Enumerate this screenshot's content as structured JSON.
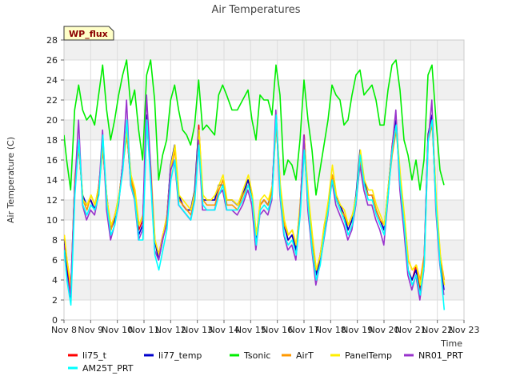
{
  "chart_data": {
    "type": "line",
    "title": "Air Temperatures",
    "xlabel": "Time",
    "ylabel": "Air Temperature (C)",
    "badge": "WP_flux",
    "ylim": [
      0,
      28
    ],
    "yticks": [
      0,
      2,
      4,
      6,
      8,
      10,
      12,
      14,
      16,
      18,
      20,
      22,
      24,
      26,
      28
    ],
    "xlim": [
      8,
      23
    ],
    "xticks": [
      {
        "v": 8,
        "label": "Nov 8"
      },
      {
        "v": 9,
        "label": "Nov 9"
      },
      {
        "v": 10,
        "label": "Nov 10"
      },
      {
        "v": 11,
        "label": "Nov 11"
      },
      {
        "v": 12,
        "label": "Nov 12"
      },
      {
        "v": 13,
        "label": "Nov 13"
      },
      {
        "v": 14,
        "label": "Nov 14"
      },
      {
        "v": 15,
        "label": "Nov 15"
      },
      {
        "v": 16,
        "label": "Nov 16"
      },
      {
        "v": 17,
        "label": "Nov 17"
      },
      {
        "v": 18,
        "label": "Nov 18"
      },
      {
        "v": 19,
        "label": "Nov 19"
      },
      {
        "v": 20,
        "label": "Nov 20"
      },
      {
        "v": 21,
        "label": "Nov 21"
      },
      {
        "v": 22,
        "label": "Nov 22"
      },
      {
        "v": 23,
        "label": "Nov 23"
      }
    ],
    "grid": true,
    "legend_position": "bottom",
    "base_x": [
      8.0,
      8.1,
      8.25,
      8.4,
      8.55,
      8.7,
      8.85,
      9.0,
      9.15,
      9.3,
      9.45,
      9.6,
      9.75,
      9.9,
      10.05,
      10.2,
      10.35,
      10.5,
      10.65,
      10.8,
      10.95,
      11.1,
      11.25,
      11.4,
      11.55,
      11.7,
      11.85,
      12.0,
      12.15,
      12.3,
      12.45,
      12.6,
      12.75,
      12.9,
      13.05,
      13.2,
      13.35,
      13.5,
      13.65,
      13.8,
      13.95,
      14.1,
      14.3,
      14.5,
      14.7,
      14.9,
      15.05,
      15.2,
      15.35,
      15.5,
      15.65,
      15.8,
      15.95,
      16.1,
      16.25,
      16.4,
      16.55,
      16.7,
      16.85,
      17.0,
      17.15,
      17.3,
      17.45,
      17.6,
      17.75,
      17.9,
      18.05,
      18.2,
      18.35,
      18.5,
      18.65,
      18.8,
      18.95,
      19.1,
      19.25,
      19.4,
      19.55,
      19.7,
      19.85,
      20.0,
      20.15,
      20.3,
      20.45,
      20.6,
      20.75,
      20.9,
      21.05,
      21.2,
      21.35,
      21.5,
      21.65,
      21.8,
      21.95,
      22.1,
      22.25
    ],
    "series": [
      {
        "name": "li75_t",
        "color": "#ff0000",
        "offset": 0.1,
        "values": [
          8.5,
          5.5,
          2.8,
          14.0,
          17.5,
          12.0,
          11.5,
          12.0,
          11.0,
          13.5,
          17.5,
          12.0,
          9.0,
          10.5,
          12.0,
          15.5,
          19.5,
          14.5,
          12.5,
          9.0,
          10.0,
          20.0,
          14.5,
          8.0,
          6.5,
          8.5,
          10.0,
          15.5,
          17.5,
          12.5,
          11.5,
          11.0,
          11.0,
          13.0,
          19.5,
          12.0,
          12.0,
          12.0,
          12.0,
          13.5,
          13.5,
          12.0,
          12.0,
          11.5,
          12.5,
          14.0,
          12.5,
          8.0,
          11.5,
          12.0,
          11.5,
          13.0,
          20.5,
          13.5,
          9.5,
          8.0,
          8.5,
          7.0,
          11.5,
          18.5,
          12.0,
          8.0,
          4.5,
          6.5,
          9.0,
          11.5,
          14.5,
          12.5,
          11.5,
          10.5,
          9.0,
          10.0,
          12.5,
          16.5,
          14.0,
          12.5,
          12.5,
          11.0,
          10.0,
          9.0,
          13.0,
          17.5,
          20.0,
          14.0,
          10.0,
          5.0,
          4.0,
          5.5,
          3.0,
          5.5,
          18.5,
          20.5,
          12.0,
          6.5,
          3.5
        ]
      },
      {
        "name": "li77_temp",
        "color": "#0000cc",
        "offset": 0.0,
        "values": [
          8.0,
          5.0,
          2.0,
          13.5,
          17.5,
          12.5,
          11.5,
          12.0,
          11.0,
          13.0,
          17.5,
          12.5,
          9.0,
          10.0,
          12.0,
          15.5,
          19.0,
          14.0,
          12.5,
          8.5,
          9.5,
          20.5,
          15.0,
          8.0,
          6.0,
          8.0,
          10.0,
          15.5,
          17.5,
          12.5,
          11.5,
          11.0,
          11.0,
          13.0,
          19.0,
          12.0,
          12.0,
          12.0,
          12.0,
          13.5,
          13.5,
          12.0,
          12.0,
          11.5,
          12.5,
          14.0,
          12.5,
          8.0,
          11.5,
          12.0,
          11.5,
          13.0,
          20.0,
          13.5,
          9.5,
          8.0,
          8.5,
          7.0,
          11.0,
          18.0,
          12.0,
          7.5,
          4.5,
          6.0,
          9.0,
          11.5,
          14.5,
          12.5,
          11.5,
          10.5,
          9.0,
          10.0,
          12.5,
          17.0,
          14.0,
          12.5,
          12.5,
          11.0,
          10.0,
          9.0,
          13.0,
          17.0,
          20.0,
          14.0,
          9.5,
          5.0,
          4.0,
          5.0,
          2.5,
          5.5,
          18.5,
          20.5,
          11.5,
          6.0,
          3.0
        ]
      },
      {
        "name": "Tsonic",
        "color": "#00ee00",
        "offset": 0.0,
        "values": [
          18.5,
          16.0,
          13.0,
          21.0,
          23.5,
          21.0,
          20.0,
          20.5,
          19.5,
          22.5,
          25.5,
          21.0,
          18.0,
          20.0,
          22.5,
          24.5,
          26.0,
          21.5,
          23.0,
          19.0,
          16.0,
          24.5,
          26.0,
          22.0,
          14.0,
          16.5,
          18.0,
          22.0,
          23.5,
          21.0,
          19.0,
          18.5,
          17.5,
          19.5,
          24.0,
          19.0,
          19.5,
          19.0,
          18.5,
          22.5,
          23.5,
          22.5,
          21.0,
          21.0,
          22.0,
          23.0,
          20.0,
          18.0,
          22.5,
          22.0,
          22.0,
          20.5,
          25.5,
          22.5,
          14.5,
          16.0,
          15.5,
          14.0,
          18.0,
          24.0,
          20.0,
          17.0,
          12.5,
          15.0,
          17.5,
          20.0,
          23.5,
          22.5,
          22.0,
          19.5,
          20.0,
          22.5,
          24.5,
          25.0,
          22.5,
          23.0,
          23.5,
          22.0,
          19.5,
          19.5,
          23.0,
          25.5,
          26.0,
          23.0,
          18.0,
          16.5,
          14.0,
          16.0,
          13.0,
          16.0,
          24.5,
          25.5,
          20.0,
          15.0,
          13.5
        ]
      },
      {
        "name": "AirT",
        "color": "#ff9900",
        "offset": 0.2,
        "values": [
          8.5,
          6.0,
          3.5,
          14.5,
          17.0,
          12.0,
          11.0,
          12.5,
          11.5,
          13.5,
          17.0,
          12.0,
          9.0,
          10.5,
          12.5,
          15.5,
          18.5,
          14.0,
          12.5,
          9.5,
          10.5,
          19.5,
          14.5,
          8.0,
          6.5,
          8.5,
          10.5,
          15.0,
          17.0,
          12.0,
          11.5,
          11.0,
          10.5,
          12.5,
          18.5,
          12.0,
          11.5,
          11.5,
          11.5,
          13.0,
          14.0,
          11.5,
          11.5,
          11.0,
          12.5,
          13.5,
          12.0,
          8.5,
          11.5,
          12.0,
          11.5,
          13.0,
          19.5,
          13.0,
          9.5,
          8.5,
          9.0,
          7.5,
          11.5,
          17.5,
          12.0,
          8.0,
          5.0,
          6.5,
          9.5,
          11.5,
          14.5,
          12.0,
          11.0,
          10.5,
          9.5,
          10.5,
          12.0,
          16.0,
          13.5,
          12.5,
          12.5,
          11.0,
          10.0,
          9.5,
          13.0,
          16.5,
          19.0,
          14.0,
          10.5,
          6.0,
          5.0,
          5.5,
          4.0,
          6.5,
          18.0,
          19.5,
          11.5,
          6.5,
          4.0
        ]
      },
      {
        "name": "PanelTemp",
        "color": "#ffee00",
        "offset": 0.3,
        "values": [
          8.5,
          6.0,
          3.0,
          14.5,
          17.5,
          12.0,
          11.5,
          12.5,
          11.5,
          13.5,
          17.5,
          12.0,
          9.5,
          10.5,
          12.5,
          15.5,
          19.0,
          14.5,
          13.0,
          9.5,
          10.5,
          20.0,
          15.0,
          8.0,
          6.5,
          8.5,
          10.5,
          15.5,
          17.5,
          12.5,
          12.0,
          11.5,
          11.0,
          13.0,
          19.0,
          12.5,
          12.0,
          12.0,
          12.5,
          13.5,
          14.5,
          12.0,
          12.0,
          11.5,
          13.0,
          14.5,
          12.5,
          8.5,
          12.0,
          12.5,
          12.0,
          13.5,
          20.0,
          13.5,
          10.0,
          8.5,
          9.0,
          7.5,
          12.0,
          18.0,
          12.5,
          8.5,
          5.0,
          6.5,
          9.5,
          12.0,
          15.5,
          12.5,
          11.5,
          11.0,
          9.5,
          10.5,
          12.5,
          17.0,
          14.0,
          13.0,
          13.0,
          11.5,
          10.5,
          9.5,
          13.5,
          17.5,
          19.5,
          14.5,
          10.5,
          6.0,
          5.0,
          5.5,
          3.5,
          6.0,
          18.5,
          20.0,
          12.0,
          6.5,
          3.5
        ]
      },
      {
        "name": "NR01_PRT",
        "color": "#9933cc",
        "offset": -0.1,
        "values": [
          7.5,
          4.5,
          2.5,
          13.0,
          20.0,
          11.5,
          10.0,
          11.0,
          10.5,
          12.5,
          19.0,
          11.0,
          8.0,
          9.5,
          11.5,
          15.5,
          22.0,
          13.5,
          12.0,
          8.0,
          9.0,
          22.5,
          15.5,
          7.0,
          6.0,
          8.0,
          9.5,
          15.0,
          16.0,
          11.5,
          11.0,
          10.5,
          10.0,
          12.0,
          18.0,
          11.0,
          11.0,
          11.0,
          11.0,
          12.5,
          13.0,
          11.0,
          11.0,
          10.5,
          11.5,
          13.0,
          11.5,
          7.0,
          10.5,
          11.0,
          10.5,
          12.0,
          21.0,
          12.5,
          8.5,
          7.0,
          7.5,
          6.0,
          10.5,
          18.5,
          11.0,
          7.0,
          3.5,
          5.5,
          8.0,
          10.5,
          14.0,
          11.5,
          10.5,
          9.5,
          8.0,
          9.0,
          11.5,
          15.5,
          13.0,
          11.5,
          11.5,
          10.0,
          9.0,
          7.5,
          12.0,
          17.0,
          21.0,
          13.0,
          9.0,
          4.5,
          3.0,
          4.5,
          2.0,
          5.0,
          17.5,
          22.0,
          11.0,
          5.5,
          2.5
        ]
      },
      {
        "name": "AM25T_PRT",
        "color": "#00ffff",
        "offset": 0.15,
        "values": [
          7.0,
          4.0,
          1.5,
          12.5,
          18.0,
          11.5,
          10.5,
          11.5,
          11.0,
          12.5,
          18.5,
          11.5,
          8.5,
          9.5,
          12.0,
          15.0,
          20.0,
          13.5,
          12.0,
          8.0,
          8.0,
          20.0,
          13.5,
          6.5,
          5.0,
          7.0,
          9.0,
          14.0,
          16.0,
          11.5,
          11.0,
          10.5,
          10.0,
          12.0,
          17.5,
          11.5,
          11.0,
          11.0,
          11.0,
          12.5,
          13.5,
          11.0,
          11.0,
          11.0,
          12.0,
          13.5,
          12.0,
          7.5,
          11.0,
          11.5,
          11.0,
          12.5,
          20.5,
          12.5,
          8.5,
          7.5,
          8.0,
          6.5,
          10.5,
          17.0,
          11.5,
          7.0,
          4.0,
          5.5,
          8.5,
          11.0,
          14.0,
          12.0,
          11.0,
          10.0,
          8.5,
          9.5,
          12.0,
          16.5,
          13.5,
          12.0,
          12.0,
          10.5,
          9.5,
          8.5,
          12.5,
          17.0,
          19.5,
          13.5,
          9.5,
          5.0,
          3.5,
          4.5,
          2.5,
          5.5,
          18.0,
          20.0,
          11.0,
          5.5,
          1.0
        ]
      }
    ],
    "legend_rows": [
      [
        "li75_t",
        "li77_temp",
        "Tsonic",
        "AirT",
        "PanelTemp",
        "NR01_PRT"
      ],
      [
        "AM25T_PRT"
      ]
    ]
  }
}
